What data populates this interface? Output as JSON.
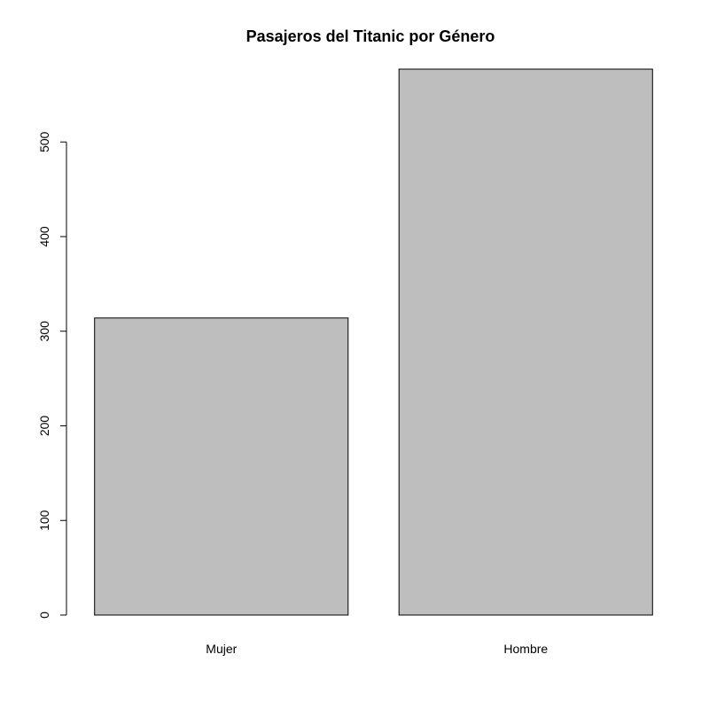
{
  "chart_data": {
    "type": "bar",
    "title": "Pasajeros del Titanic por Género",
    "xlabel": "",
    "ylabel": "",
    "categories": [
      "Mujer",
      "Hombre"
    ],
    "values": [
      314,
      577
    ],
    "ylim": [
      0,
      577
    ],
    "yticks": [
      0,
      100,
      200,
      300,
      400,
      500
    ],
    "grid": false,
    "legend": "none",
    "colors": {
      "bar_fill": "#bebebe",
      "bar_stroke": "#000000",
      "axis": "#000000",
      "background": "#ffffff"
    }
  }
}
